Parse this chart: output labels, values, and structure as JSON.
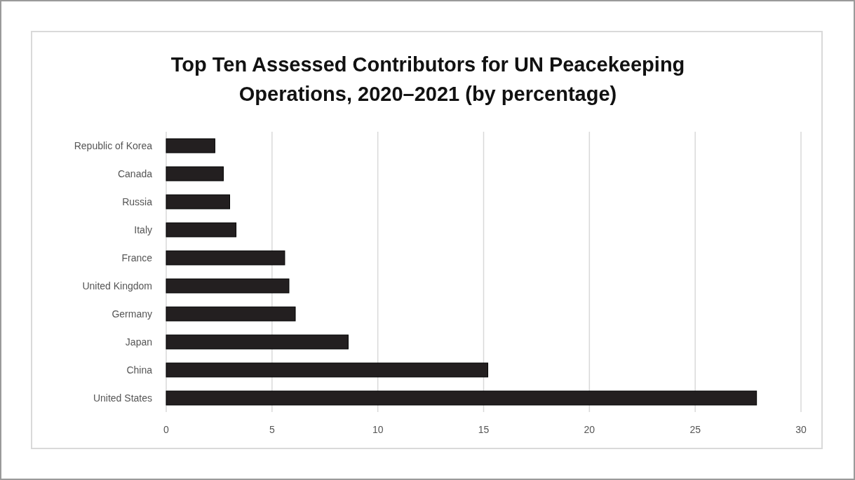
{
  "chart_data": {
    "type": "bar",
    "orientation": "horizontal",
    "title": "Top Ten Assessed Contributors for UN Peacekeeping Operations, 2020–2021 (by percentage)",
    "categories": [
      "Republic of Korea",
      "Canada",
      "Russia",
      "Italy",
      "France",
      "United Kingdom",
      "Germany",
      "Japan",
      "China",
      "United States"
    ],
    "values": [
      2.3,
      2.7,
      3.0,
      3.3,
      5.6,
      5.8,
      6.1,
      8.6,
      15.2,
      27.9
    ],
    "color": "#231f20",
    "xlim": [
      0,
      30
    ],
    "xticks": [
      0,
      5,
      10,
      15,
      20,
      25,
      30
    ],
    "grid": "x"
  }
}
